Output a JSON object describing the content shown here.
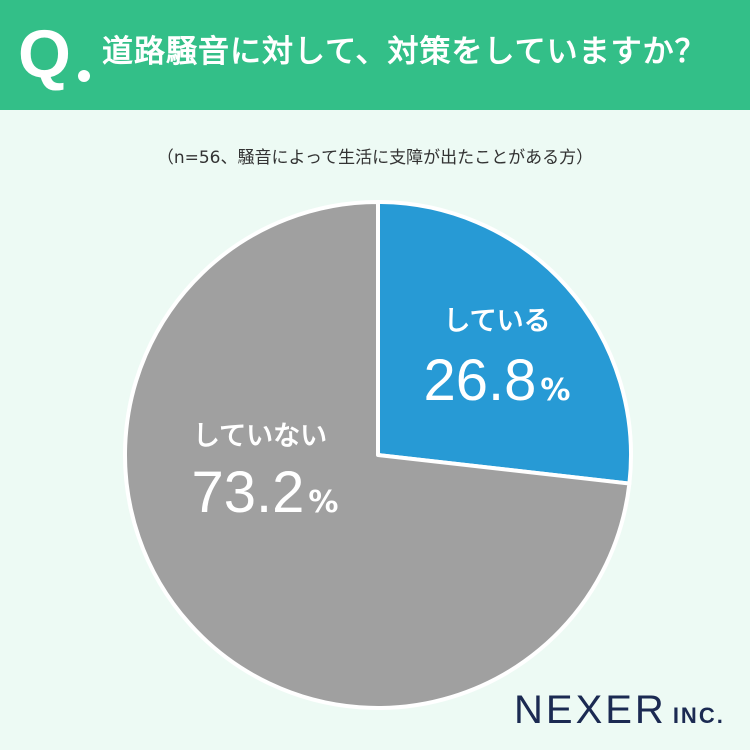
{
  "header": {
    "q_mark": "Q",
    "question": "道路騒音に対して、対策をしていますか？"
  },
  "subtitle": "（n=56、騒音によって生活に支障が出たことがある方）",
  "chart_data": {
    "type": "pie",
    "slices": [
      {
        "label": "している",
        "value": 26.8,
        "value_text": "26.8",
        "unit": "%",
        "color": "#279ad5"
      },
      {
        "label": "していない",
        "value": 73.2,
        "value_text": "73.2",
        "unit": "%",
        "color": "#a0a0a0"
      }
    ],
    "start": "12 o'clock",
    "direction": "clockwise",
    "slice_border_color": "#ffffff",
    "legend": "none"
  },
  "logo": {
    "brand": "NEXER",
    "suffix": "INC."
  }
}
